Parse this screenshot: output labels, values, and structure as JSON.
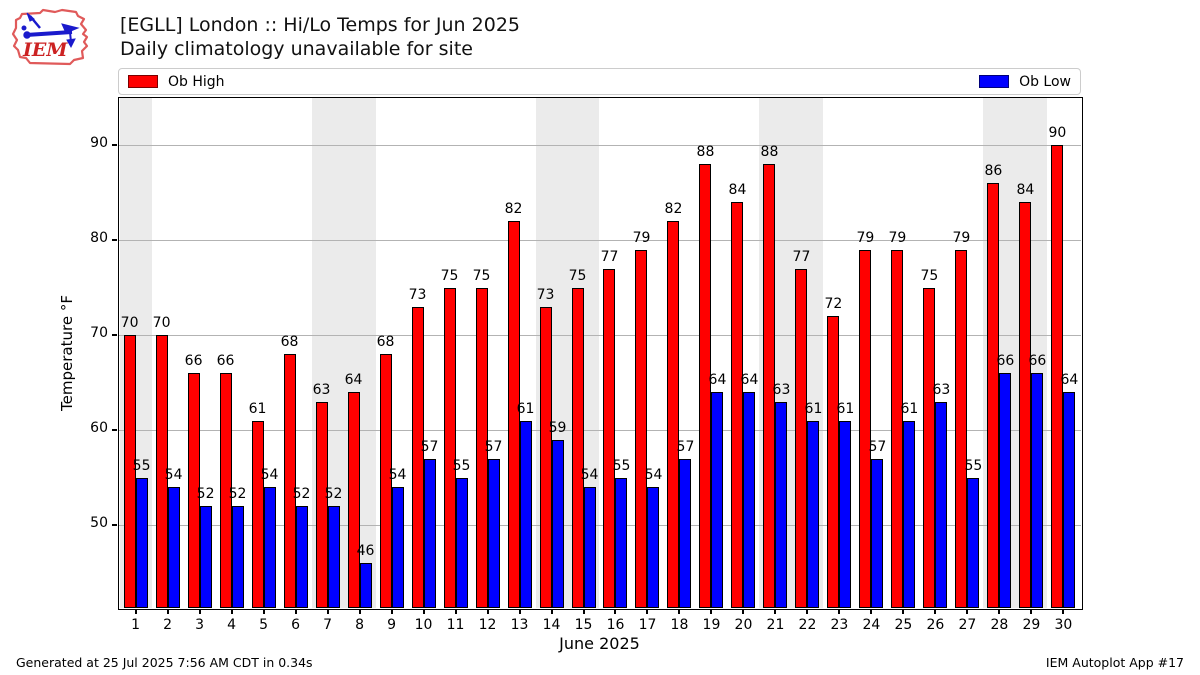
{
  "header": {
    "title_line1": "[EGLL] London :: Hi/Lo Temps for Jun 2025",
    "title_line2": "Daily climatology unavailable for site",
    "logo_text": "IEM"
  },
  "legend": {
    "high_label": "Ob High",
    "low_label": "Ob Low"
  },
  "footer": {
    "generated": "Generated at 25 Jul 2025 7:56 AM CDT in 0.34s",
    "app": "IEM Autoplot App #17"
  },
  "chart_data": {
    "type": "bar",
    "title": "[EGLL] London :: Hi/Lo Temps for Jun 2025",
    "subtitle": "Daily climatology unavailable for site",
    "xlabel": "June 2025",
    "ylabel": "Temperature °F",
    "categories": [
      1,
      2,
      3,
      4,
      5,
      6,
      7,
      8,
      9,
      10,
      11,
      12,
      13,
      14,
      15,
      16,
      17,
      18,
      19,
      20,
      21,
      22,
      23,
      24,
      25,
      26,
      27,
      28,
      29,
      30
    ],
    "series": [
      {
        "name": "Ob High",
        "color": "#ff0000",
        "values": [
          70,
          70,
          66,
          66,
          61,
          68,
          63,
          64,
          68,
          73,
          75,
          75,
          82,
          73,
          75,
          77,
          79,
          82,
          88,
          84,
          88,
          77,
          72,
          79,
          79,
          75,
          79,
          86,
          84,
          90
        ]
      },
      {
        "name": "Ob Low",
        "color": "#0000ff",
        "values": [
          55,
          54,
          52,
          52,
          54,
          52,
          52,
          46,
          54,
          57,
          55,
          57,
          61,
          59,
          54,
          55,
          54,
          57,
          64,
          64,
          63,
          61,
          61,
          57,
          61,
          63,
          55,
          66,
          66,
          64
        ]
      }
    ],
    "yticks": [
      50,
      60,
      70,
      80,
      90
    ],
    "ylim": [
      41.3,
      95.05
    ],
    "xlim": [
      0.45,
      30.55
    ],
    "grid": true,
    "legend_position": "top",
    "weekend_bands": [
      [
        0.5,
        1.5
      ],
      [
        6.5,
        8.5
      ],
      [
        13.5,
        15.5
      ],
      [
        20.5,
        22.5
      ],
      [
        27.5,
        29.5
      ]
    ],
    "band_color": "#ebebeb",
    "grid_color": "#b3b3b3"
  }
}
